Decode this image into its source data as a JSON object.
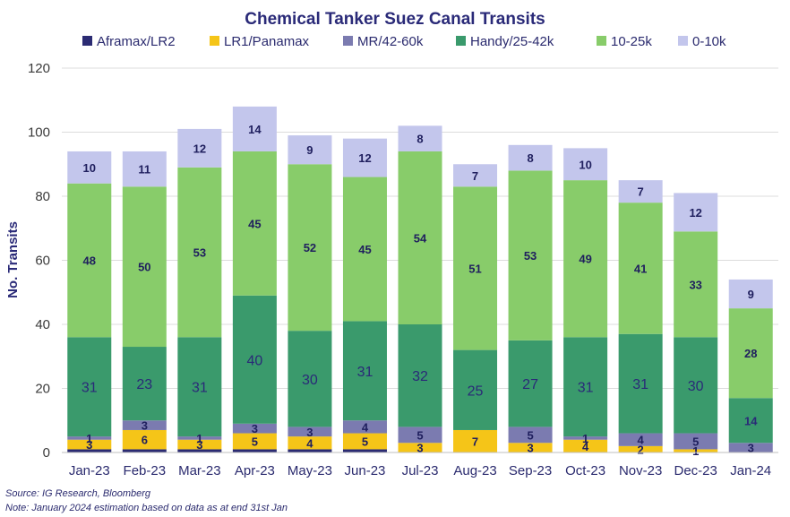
{
  "chart_data": {
    "type": "bar",
    "stacked": true,
    "title": "Chemical Tanker Suez Canal Transits",
    "xlabel": "",
    "ylabel": "No. Transits",
    "ylim": [
      0,
      120
    ],
    "yticks": [
      0,
      20,
      40,
      60,
      80,
      100,
      120
    ],
    "grid": true,
    "legend_position": "top",
    "categories": [
      "Jan-23",
      "Feb-23",
      "Mar-23",
      "Apr-23",
      "May-23",
      "Jun-23",
      "Jul-23",
      "Aug-23",
      "Sep-23",
      "Oct-23",
      "Nov-23",
      "Dec-23",
      "Jan-24"
    ],
    "series": [
      {
        "name": "Aframax/LR2",
        "color": "#2b2b73",
        "values": [
          1,
          1,
          1,
          1,
          1,
          1,
          0,
          0,
          0,
          0,
          0,
          0,
          0
        ]
      },
      {
        "name": "LR1/Panamax",
        "color": "#f5c518",
        "values": [
          3,
          6,
          3,
          5,
          4,
          5,
          3,
          7,
          3,
          4,
          2,
          1,
          0
        ]
      },
      {
        "name": "MR/42-60k",
        "color": "#7b7bb0",
        "values": [
          1,
          3,
          1,
          3,
          3,
          4,
          5,
          0,
          5,
          1,
          4,
          5,
          3
        ]
      },
      {
        "name": "Handy/25-42k",
        "color": "#3a9a6c",
        "values": [
          31,
          23,
          31,
          40,
          30,
          31,
          32,
          25,
          27,
          31,
          31,
          30,
          14
        ]
      },
      {
        "name": "10-25k",
        "color": "#88cc6a",
        "values": [
          48,
          50,
          53,
          45,
          52,
          45,
          54,
          51,
          53,
          49,
          41,
          33,
          28
        ]
      },
      {
        "name": "0-10k",
        "color": "#c3c6ec",
        "values": [
          10,
          11,
          12,
          14,
          9,
          12,
          8,
          7,
          8,
          10,
          7,
          12,
          9
        ]
      }
    ],
    "data_labels": [
      [
        null,
        "3",
        "1",
        "31",
        "48",
        "10"
      ],
      [
        null,
        "6",
        "3",
        "23",
        "50",
        "11"
      ],
      [
        null,
        "3",
        "1",
        "31",
        "53",
        "12"
      ],
      [
        null,
        "5",
        "3",
        "40",
        "45",
        "14"
      ],
      [
        null,
        "4",
        "3",
        "30",
        "52",
        "9"
      ],
      [
        null,
        "5",
        "4",
        "31",
        "45",
        "12"
      ],
      [
        null,
        "3",
        "5",
        "32",
        "54",
        "8"
      ],
      [
        null,
        "7",
        null,
        "25",
        "51",
        "7"
      ],
      [
        null,
        "3",
        "5",
        "27",
        "53",
        "8"
      ],
      [
        null,
        "4",
        "1",
        "31",
        "49",
        "10"
      ],
      [
        null,
        "2",
        "4",
        "31",
        "41",
        "7"
      ],
      [
        null,
        "1",
        "5",
        "30",
        "33",
        "12"
      ],
      [
        null,
        null,
        "3",
        "14",
        "28",
        "9"
      ]
    ]
  },
  "notes": {
    "source": "Source: IG Research, Bloomberg",
    "note": "Note: January 2024 estimation based on data as at end 31st Jan"
  }
}
